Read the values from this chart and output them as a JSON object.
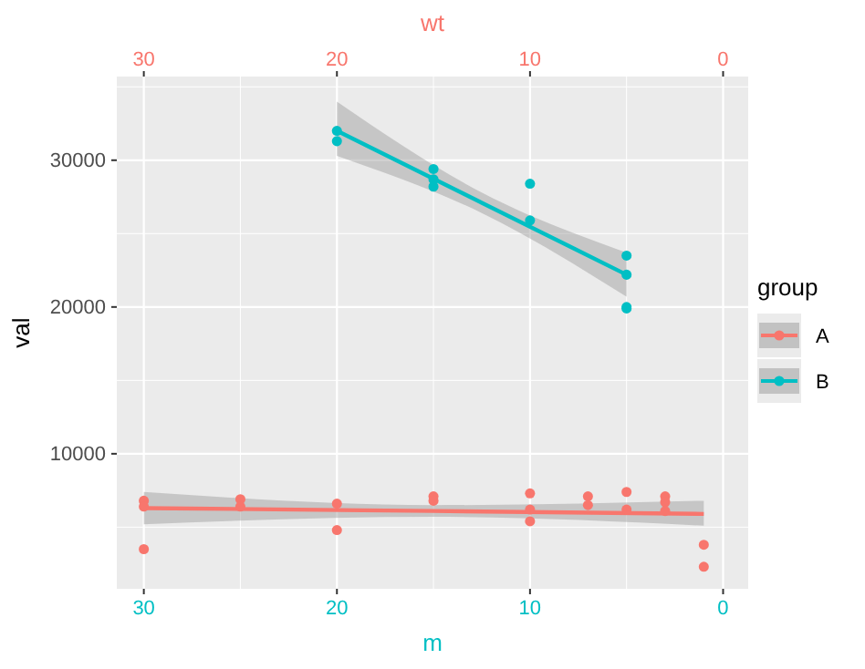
{
  "chart_data": {
    "type": "scatter",
    "xlabel": "m",
    "x2label": "wt",
    "ylabel": "val",
    "legend_title": "group",
    "legend": "right",
    "grid": true,
    "marker": "circle",
    "xlim": [
      31.4,
      -1.3
    ],
    "xticks": [
      30,
      20,
      10,
      0
    ],
    "x2lim": [
      31.4,
      -1.3
    ],
    "x2ticks": [
      30,
      20,
      10,
      0
    ],
    "ylim": [
      800,
      35700
    ],
    "yticks": [
      10000,
      20000,
      30000
    ],
    "series": [
      {
        "name": "A",
        "color": "#f8766d",
        "x": [
          30,
          30,
          30,
          25,
          25,
          20,
          20,
          15,
          15,
          10,
          10,
          10,
          7,
          7,
          5,
          5,
          3,
          3,
          3,
          1,
          1
        ],
        "values": [
          6800,
          6400,
          3500,
          6900,
          6400,
          6600,
          4800,
          7100,
          6800,
          7300,
          6200,
          5400,
          7100,
          6500,
          7400,
          6200,
          7100,
          6700,
          6100,
          3800,
          2300
        ]
      },
      {
        "name": "B",
        "color": "#00bfc4",
        "x": [
          20,
          20,
          15,
          15,
          15,
          10,
          10,
          5,
          5,
          5,
          5
        ],
        "values": [
          32000,
          31300,
          29400,
          28700,
          28200,
          28400,
          25900,
          23500,
          22200,
          20000,
          19900
        ]
      },
      {
        "type": "line",
        "marker": "none",
        "color": "#f8766d",
        "x": [
          30,
          15,
          1
        ],
        "values": [
          6300,
          6100,
          5900
        ],
        "lower": [
          5200,
          5700,
          5100
        ],
        "upper": [
          7400,
          6500,
          6800
        ]
      },
      {
        "type": "line",
        "marker": "none",
        "color": "#00bfc4",
        "x": [
          20,
          12.5,
          5
        ],
        "values": [
          32000,
          27100,
          22200
        ],
        "lower": [
          30300,
          26400,
          20700
        ],
        "upper": [
          34000,
          27800,
          23700
        ]
      }
    ]
  }
}
